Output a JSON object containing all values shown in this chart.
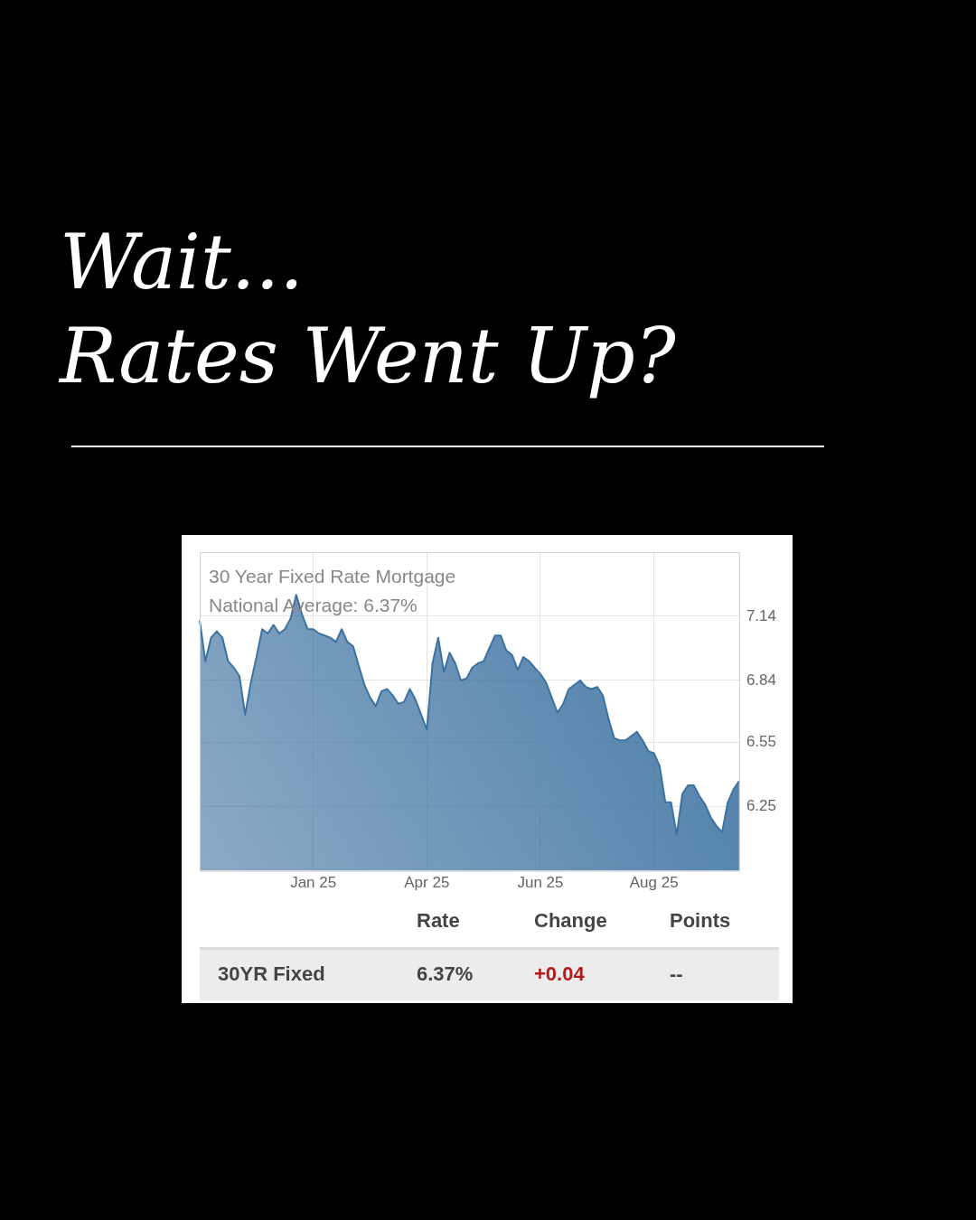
{
  "chart_data": {
    "type": "area",
    "title": "Wait...\nRates Went Up?",
    "subtitle": "30 Year Fixed Rate Mortgage",
    "annotations": [
      "National Average: 6.37%",
      "Rate",
      "Change",
      "Points",
      "30YR Fixed",
      "6.37%",
      "+0.04",
      "--"
    ],
    "categories": [
      null,
      null,
      null,
      null,
      null,
      null,
      null,
      null,
      null,
      null,
      null,
      null,
      null,
      null,
      null,
      null,
      null,
      null,
      null,
      null,
      "Jan 25",
      null,
      null,
      null,
      null,
      null,
      null,
      null,
      null,
      null,
      null,
      null,
      null,
      null,
      null,
      null,
      null,
      null,
      null,
      null,
      "Apr 25",
      null,
      null,
      null,
      null,
      null,
      null,
      null,
      null,
      null,
      null,
      null,
      null,
      null,
      null,
      null,
      null,
      null,
      null,
      null,
      "Jun 25",
      null,
      null,
      null,
      null,
      null,
      null,
      null,
      null,
      null,
      null,
      null,
      null,
      null,
      null,
      null,
      null,
      null,
      null,
      null,
      "Aug 25",
      null,
      null,
      null,
      null,
      null,
      null,
      null,
      null,
      null,
      null,
      null,
      null,
      null,
      null,
      null
    ],
    "values": [
      7.12,
      6.93,
      7.04,
      7.07,
      7.04,
      6.93,
      6.9,
      6.86,
      6.68,
      6.83,
      6.95,
      7.08,
      7.06,
      7.1,
      7.06,
      7.08,
      7.13,
      7.24,
      7.15,
      7.08,
      7.08,
      7.06,
      7.05,
      7.04,
      7.02,
      7.08,
      7.02,
      7.0,
      6.91,
      6.82,
      6.76,
      6.72,
      6.79,
      6.8,
      6.77,
      6.73,
      6.74,
      6.8,
      6.75,
      6.68,
      6.61,
      6.92,
      7.04,
      6.88,
      6.97,
      6.92,
      6.84,
      6.85,
      6.9,
      6.92,
      6.93,
      6.99,
      7.05,
      7.05,
      6.98,
      6.96,
      6.89,
      6.95,
      6.93,
      6.9,
      6.87,
      6.83,
      6.76,
      6.69,
      6.73,
      6.8,
      6.82,
      6.84,
      6.81,
      6.8,
      6.81,
      6.77,
      6.66,
      6.57,
      6.56,
      6.56,
      6.58,
      6.6,
      6.56,
      6.51,
      6.5,
      6.44,
      6.27,
      6.27,
      6.12,
      6.31,
      6.35,
      6.35,
      6.3,
      6.26,
      6.2,
      6.16,
      6.13,
      6.27,
      6.33,
      6.37
    ],
    "color": "#3d72a0",
    "ylim": [
      5.95,
      7.44
    ],
    "yticks": [
      7.14,
      6.84,
      6.55,
      6.25
    ],
    "grid": true,
    "marker": "none"
  }
}
